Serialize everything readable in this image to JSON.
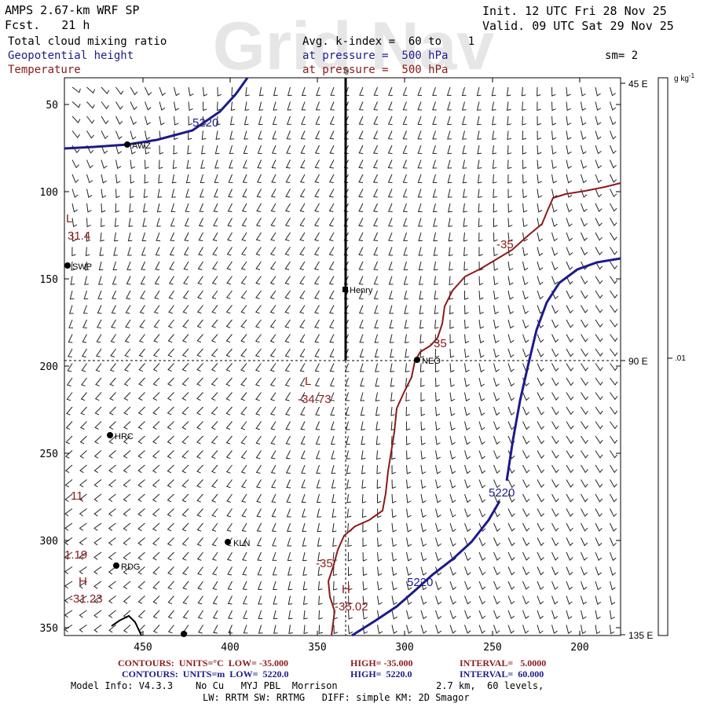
{
  "header": {
    "title_line": "AMPS 2.67-km WRF SP",
    "forecast_line": "Fcst.   21 h",
    "init_line": "Init. 12 UTC Fri 28 Nov 25",
    "valid_line": "Valid. 09 UTC Sat 29 Nov 25",
    "watermark": "Grid Nav",
    "fields": [
      {
        "label": "Total cloud mixing ratio",
        "color": "#000000"
      },
      {
        "label": "Geopotential height",
        "color": "#1b1b8a"
      },
      {
        "label": "Temperature",
        "color": "#8b1a1a"
      }
    ],
    "avg_line": "Avg. k-index =  60 to    1",
    "pressure_lines": [
      "at pressure =  500 hPa",
      "at pressure =  500 hPa"
    ],
    "smoothing": "sm= 2"
  },
  "plot": {
    "top_marker": "0",
    "x_ticks": [
      "450",
      "400",
      "350",
      "300",
      "250",
      "200"
    ],
    "y_ticks": [
      "50",
      "100",
      "150",
      "200",
      "250",
      "300",
      "350"
    ],
    "right_labels": [
      "45 E",
      "90 E",
      "135 E"
    ],
    "colorbar_unit": "g kg",
    "colorbar_unit_exp": "-1",
    "colorbar_value": ".01"
  },
  "stations": [
    {
      "name": "AWZ"
    },
    {
      "name": "SWP"
    },
    {
      "name": "Henry"
    },
    {
      "name": "NEO"
    },
    {
      "name": "HRC"
    },
    {
      "name": "KLN"
    },
    {
      "name": "RDG"
    },
    {
      "name": ""
    }
  ],
  "contour_labels": {
    "height": [
      "5220",
      "5220",
      "5220"
    ],
    "temperature": [
      "-35",
      "-35",
      "-35"
    ]
  },
  "extrema": [
    {
      "letter": "L",
      "value": "31.4"
    },
    {
      "letter": "L",
      "value": "-34.73"
    },
    {
      "letter": "",
      "value": "11"
    },
    {
      "letter": "",
      "value": "1.19"
    },
    {
      "letter": "H",
      "value": "-31.23"
    },
    {
      "letter": "H",
      "value": "-35.02"
    }
  ],
  "footer": {
    "temp_line": [
      "CONTOURS:  UNITS=°C  LOW= -35.000",
      "HIGH= -35.000",
      "INTERVAL=   5.0000"
    ],
    "height_line": [
      "CONTOURS:  UNITS=m  LOW=  5220.0",
      "HIGH=  5220.0",
      "INTERVAL=  60.000"
    ],
    "model_info": "Model Info: V4.3.3    No Cu   MYJ PBL  Morrison",
    "model_resolution": "2.7 km,  60 levels,",
    "model_physics": "LW: RRTM SW: RRTMG   DIFF: simple KM: 2D Smagor"
  },
  "colors": {
    "frame": "#000000",
    "height_contour": "#1b1b8a",
    "temperature_contour": "#8b1a1a",
    "watermark": "#e6e6e6",
    "wind": "#222222",
    "footer_temp": "#8b1a1a",
    "footer_height": "#1b1b8a"
  }
}
